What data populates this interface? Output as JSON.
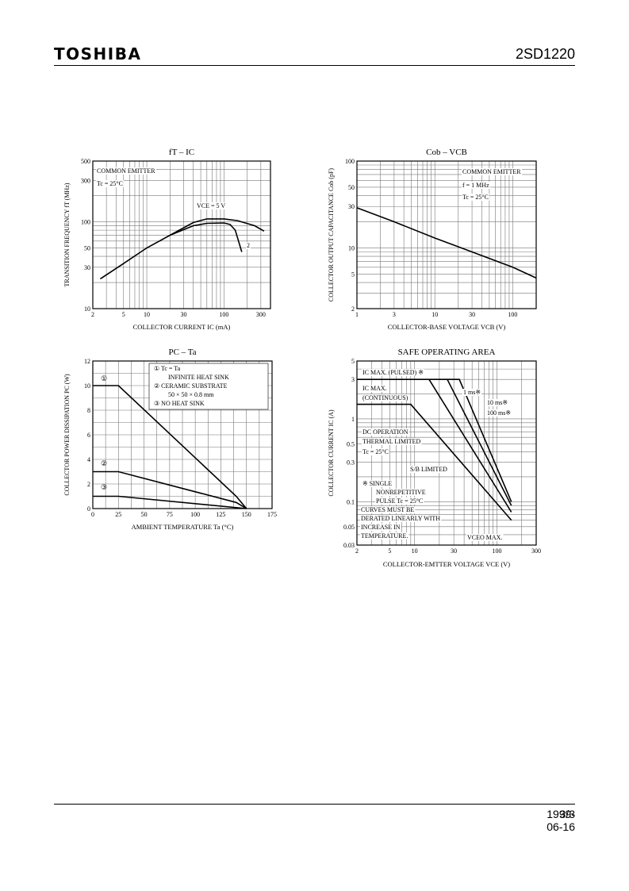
{
  "header": {
    "brand": "TOSHIBA",
    "part_number": "2SD1220"
  },
  "footer": {
    "date": "1999-06-16",
    "page": "3/3"
  },
  "chart_data": [
    {
      "id": "ft",
      "type": "line",
      "title": "fT – IC",
      "xlabel": "COLLECTOR CURRENT   IC  (mA)",
      "ylabel": "TRANSITION FREQUENCY   fT   (MHz)",
      "xscale": "log",
      "yscale": "log",
      "grid": true,
      "xlim": [
        2,
        400
      ],
      "ylim": [
        10,
        500
      ],
      "xticks": [
        "2",
        "5",
        "10",
        "30",
        "100",
        "300"
      ],
      "yticks": [
        "10",
        "30",
        "50",
        "100",
        "300",
        "500"
      ],
      "annotations": [
        "COMMON EMITTER",
        "Tc = 25°C",
        "VCE = 5 V",
        "2"
      ],
      "series": [
        {
          "values": [
            [
              2.5,
              22
            ],
            [
              5,
              33
            ],
            [
              10,
              50
            ],
            [
              20,
              70
            ],
            [
              40,
              90
            ],
            [
              60,
              96
            ],
            [
              100,
              97
            ],
            [
              120,
              93
            ],
            [
              140,
              80
            ],
            [
              170,
              45
            ]
          ]
        },
        {
          "values": [
            [
              20,
              70
            ],
            [
              40,
              98
            ],
            [
              60,
              108
            ],
            [
              100,
              108
            ],
            [
              150,
              103
            ],
            [
              250,
              90
            ],
            [
              330,
              78
            ]
          ]
        }
      ]
    },
    {
      "id": "cob",
      "type": "line",
      "title": "Cob – VCB",
      "xlabel": "COLLECTOR-BASE VOLTAGE   VCB   (V)",
      "ylabel": "COLLECTOR OUTPUT CAPACITANCE   Cob  (pF)",
      "xscale": "log",
      "yscale": "log",
      "grid": true,
      "xlim": [
        1,
        200
      ],
      "ylim": [
        2,
        100
      ],
      "xticks": [
        "1",
        "3",
        "10",
        "30",
        "100"
      ],
      "yticks": [
        "2",
        "5",
        "10",
        "30",
        "50",
        "100"
      ],
      "annotations": [
        "COMMON EMITTER",
        "f = 1 MHz",
        "Tc = 25°C"
      ],
      "series": [
        {
          "values": [
            [
              1,
              29
            ],
            [
              3,
              20
            ],
            [
              10,
              13
            ],
            [
              30,
              9
            ],
            [
              100,
              6
            ],
            [
              200,
              4.5
            ]
          ]
        }
      ]
    },
    {
      "id": "pc",
      "type": "line",
      "title": "PC – Ta",
      "xlabel": "AMBIENT TEMPERATURE   Ta  (°C)",
      "ylabel": "COLLECTOR POWER DISSIPATION   PC  (W)",
      "xscale": "linear",
      "yscale": "linear",
      "grid": true,
      "xlim": [
        0,
        175
      ],
      "ylim": [
        0,
        12
      ],
      "xticks": [
        "0",
        "25",
        "50",
        "75",
        "100",
        "125",
        "150",
        "175"
      ],
      "yticks": [
        "0",
        "2",
        "4",
        "6",
        "8",
        "10",
        "12"
      ],
      "legend": [
        "①   Tc = Ta",
        "INFINITE HEAT SINK",
        "②   CERAMIC SUBSTRATE",
        "50 × 50 × 0.8 mm",
        "③   NO HEAT SINK"
      ],
      "markers": [
        "①",
        "②",
        "③"
      ],
      "series": [
        {
          "values": [
            [
              0,
              10
            ],
            [
              25,
              10
            ],
            [
              140,
              1
            ],
            [
              150,
              0
            ]
          ]
        },
        {
          "values": [
            [
              0,
              3
            ],
            [
              25,
              3
            ],
            [
              140,
              0.5
            ],
            [
              150,
              0
            ]
          ]
        },
        {
          "values": [
            [
              0,
              1
            ],
            [
              25,
              1
            ],
            [
              150,
              0
            ]
          ]
        }
      ]
    },
    {
      "id": "soa",
      "type": "line",
      "title": "SAFE OPERATING AREA",
      "xlabel": "COLLECTOR-EMTTER VOLTAGE   VCE   (V)",
      "ylabel": "COLLECTOR CURRENT   IC   (A)",
      "xscale": "log",
      "yscale": "log",
      "grid": true,
      "xlim": [
        2,
        300
      ],
      "ylim": [
        0.03,
        5
      ],
      "xticks": [
        "2",
        "5",
        "10",
        "30",
        "100",
        "300"
      ],
      "yticks": [
        "0.03",
        "0.05",
        "0.1",
        "0.3",
        "0.5",
        "1",
        "3",
        "5"
      ],
      "annotations": [
        "IC MAX. (PULSED) ※",
        "IC MAX.",
        "(CONTINUOUS)",
        "1 ms※",
        "10 ms※",
        "100 ms※",
        "DC OPERATION",
        "THERMAL LIMITED",
        "Tc = 25°C",
        "S/B LIMITED",
        "※   SINGLE",
        "NONREPETITIVE",
        "PULSE Tc = 25°C",
        "CURVES MUST BE",
        "DERATED LINEARLY WITH",
        "INCREASE IN",
        "TEMPERATURE.",
        "VCEO MAX."
      ],
      "series": [
        {
          "name": "1 ms※",
          "values": [
            [
              2,
              3
            ],
            [
              35,
              3
            ],
            [
              150,
              0.1
            ]
          ]
        },
        {
          "name": "10 ms※",
          "values": [
            [
              25,
              3
            ],
            [
              150,
              0.09
            ]
          ]
        },
        {
          "name": "100 ms※",
          "values": [
            [
              15,
              3
            ],
            [
              150,
              0.075
            ]
          ]
        },
        {
          "name": "DC OPERATION",
          "values": [
            [
              2,
              1.5
            ],
            [
              9,
              1.5
            ],
            [
              150,
              0.06
            ]
          ]
        }
      ]
    }
  ]
}
